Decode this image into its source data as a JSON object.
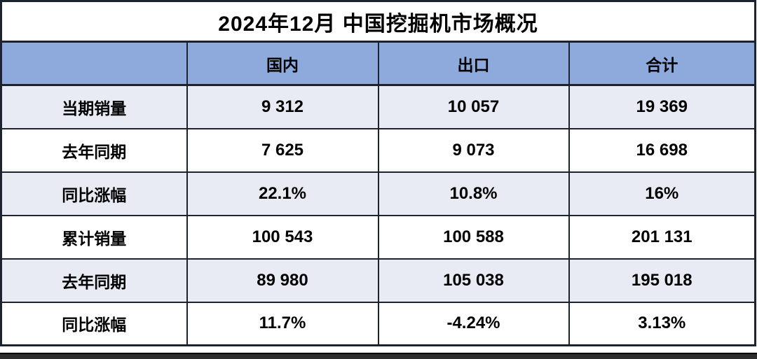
{
  "title": "2024年12月 中国挖掘机市场概况",
  "table": {
    "columns": [
      "",
      "国内",
      "出口",
      "合计"
    ],
    "rows": [
      {
        "label": "当期销量",
        "values": [
          "9 312",
          "10 057",
          "19 369"
        ]
      },
      {
        "label": "去年同期",
        "values": [
          "7 625",
          "9 073",
          "16 698"
        ]
      },
      {
        "label": "同比涨幅",
        "values": [
          "22.1%",
          "10.8%",
          "16%"
        ]
      },
      {
        "label": "累计销量",
        "values": [
          "100 543",
          "100 588",
          "201 131"
        ]
      },
      {
        "label": "去年同期",
        "values": [
          "89 980",
          "105 038",
          "195 018"
        ]
      },
      {
        "label": "同比涨幅",
        "values": [
          "11.7%",
          "-4.24%",
          "3.13%"
        ]
      }
    ]
  },
  "chart_data": {
    "type": "table",
    "title": "2024年12月 中国挖掘机市场概况",
    "columns": [
      "",
      "国内",
      "出口",
      "合计"
    ],
    "rows": [
      [
        "当期销量",
        "9 312",
        "10 057",
        "19 369"
      ],
      [
        "去年同期",
        "7 625",
        "9 073",
        "16 698"
      ],
      [
        "同比涨幅",
        "22.1%",
        "10.8%",
        "16%"
      ],
      [
        "累计销量",
        "100 543",
        "100 588",
        "201 131"
      ],
      [
        "去年同期",
        "89 980",
        "105 038",
        "195 018"
      ],
      [
        "同比涨幅",
        "11.7%",
        "-4.24%",
        "3.13%"
      ]
    ]
  },
  "colors": {
    "header_bg": "#8EA9DB",
    "row_alt_bg": "#E8EBF4",
    "border": "#1C222E",
    "text": "#000000",
    "bottom_bar": "#2E2E2E"
  }
}
